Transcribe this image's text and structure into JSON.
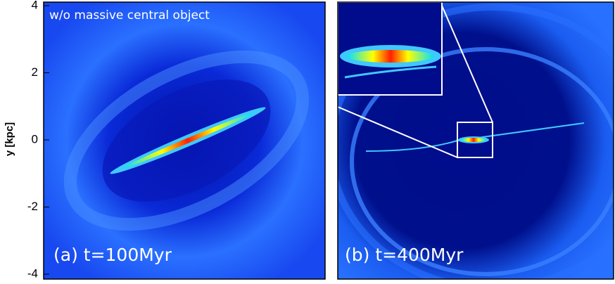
{
  "chart_data": {
    "type": "image",
    "y_label": "y [kpc]",
    "ylim": [
      -4,
      4
    ],
    "yticks": [
      -4,
      -2,
      0,
      2,
      4
    ],
    "annotation": "w/o massive central object",
    "panels": [
      {
        "label": "(a) t=100Myr"
      },
      {
        "label": "(b) t=400Myr"
      }
    ]
  }
}
